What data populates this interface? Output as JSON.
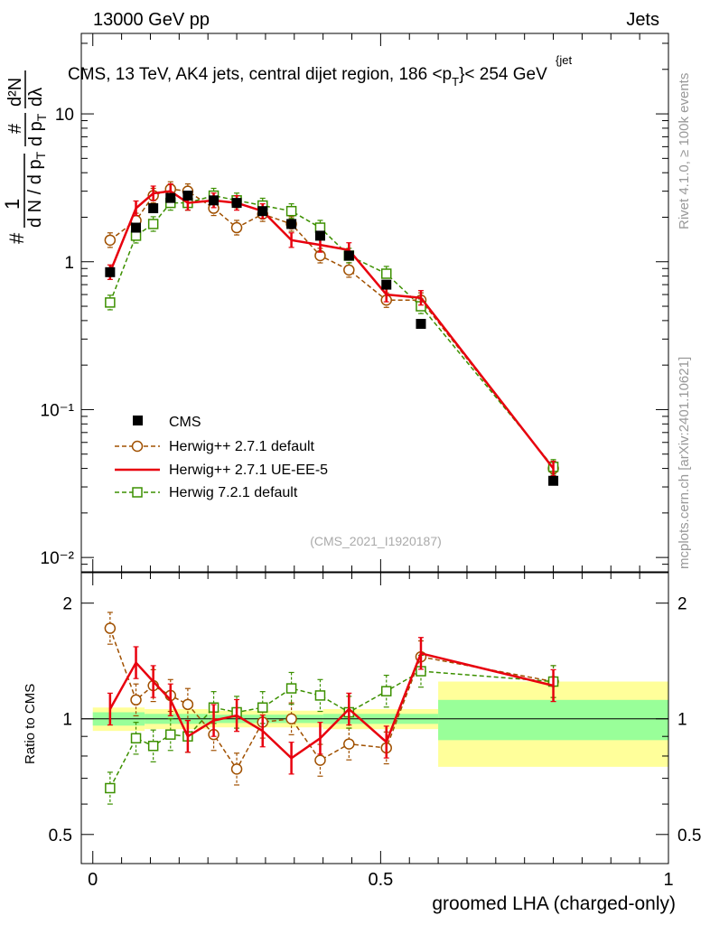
{
  "header": {
    "left_label": "13000 GeV pp",
    "right_label": "Jets",
    "rivet_label": "Rivet 4.1.0, ≥ 100k events",
    "mcplots_label": "mcplots.cern.ch [arXiv:2401.10621]"
  },
  "chart_data": [
    {
      "type": "line",
      "panel": "main",
      "title": "CMS, 13 TeV, AK4 jets, central dijet region, 186 <p",
      "title_sub": "T",
      "title_sup": "{jet",
      "title_tail": "}< 254 GeV",
      "ylabel_parts": {
        "hash": "#",
        "frac_num": "1",
        "frac_den": "d N / d p",
        "frac_den_sub": "T",
        "frac2_num": "#",
        "frac2_den": "d p",
        "frac2_den_sub": "T",
        "d2N": "d²N",
        "dlambda": "dλ"
      },
      "yscale": "log",
      "ylim": [
        0.008,
        35
      ],
      "xlim": [
        -0.02,
        1.0
      ],
      "ytick_labels": [
        "10⁻²",
        "10⁻¹",
        "1",
        "10"
      ],
      "ytick_values": [
        0.01,
        0.1,
        1,
        10
      ],
      "watermark": "(CMS_2021_I1920187)",
      "legend": {
        "placement": "middle-left",
        "entries": [
          {
            "name": "CMS",
            "key": "cms"
          },
          {
            "name": "Herwig++ 2.7.1 default",
            "key": "hd"
          },
          {
            "name": "Herwig++ 2.7.1 UE-EE-5",
            "key": "hue"
          },
          {
            "name": "Herwig 7.2.1 default",
            "key": "h7"
          }
        ]
      },
      "series": [
        {
          "name": "CMS",
          "key": "cms",
          "color": "#000000",
          "x": [
            0.03,
            0.075,
            0.105,
            0.135,
            0.165,
            0.21,
            0.25,
            0.295,
            0.345,
            0.395,
            0.445,
            0.51,
            0.57,
            0.8
          ],
          "y": [
            0.85,
            1.7,
            2.3,
            2.7,
            2.8,
            2.6,
            2.5,
            2.2,
            1.8,
            1.5,
            1.1,
            0.7,
            0.38,
            0.033
          ]
        },
        {
          "name": "Herwig++ 2.7.1 default",
          "key": "hd",
          "color": "#a05000",
          "x": [
            0.03,
            0.075,
            0.105,
            0.135,
            0.165,
            0.21,
            0.25,
            0.295,
            0.345,
            0.395,
            0.445,
            0.51,
            0.57,
            0.8
          ],
          "y": [
            1.4,
            1.9,
            2.8,
            3.1,
            3.0,
            2.3,
            1.7,
            2.1,
            1.8,
            1.1,
            0.88,
            0.55,
            0.55,
            0.04
          ]
        },
        {
          "name": "Herwig++ 2.7.1 UE-EE-5",
          "key": "hue",
          "color": "#e8000e",
          "x": [
            0.03,
            0.075,
            0.105,
            0.135,
            0.165,
            0.21,
            0.25,
            0.295,
            0.345,
            0.395,
            0.445,
            0.51,
            0.57,
            0.8
          ],
          "y": [
            0.85,
            2.3,
            2.9,
            3.0,
            2.5,
            2.6,
            2.5,
            2.2,
            1.4,
            1.3,
            1.2,
            0.6,
            0.57,
            0.04
          ]
        },
        {
          "name": "Herwig 7.2.1 default",
          "key": "h7",
          "color": "#3c9000",
          "x": [
            0.03,
            0.075,
            0.105,
            0.135,
            0.165,
            0.21,
            0.25,
            0.295,
            0.345,
            0.395,
            0.445,
            0.51,
            0.57,
            0.8
          ],
          "y": [
            0.53,
            1.5,
            1.8,
            2.5,
            2.5,
            2.8,
            2.6,
            2.4,
            2.2,
            1.7,
            1.1,
            0.83,
            0.5,
            0.041
          ]
        }
      ]
    },
    {
      "type": "line",
      "panel": "ratio",
      "ylabel": "Ratio to CMS",
      "xlabel": "groomed LHA (charged-only)",
      "ylim": [
        0.42,
        2.4
      ],
      "xlim": [
        -0.02,
        1.0
      ],
      "ytick_labels": [
        "0.5",
        "1",
        "2"
      ],
      "ytick_values": [
        0.5,
        1,
        2
      ],
      "xtick_labels": [
        "0",
        "0.5",
        "1"
      ],
      "xtick_values": [
        0,
        0.5,
        1
      ],
      "bands": {
        "edges": [
          0.0,
          0.09,
          0.2,
          0.4,
          0.6,
          1.0
        ],
        "green_half": [
          0.04,
          0.03,
          0.025,
          0.03,
          0.12
        ],
        "yellow_half": [
          0.07,
          0.06,
          0.05,
          0.06,
          0.25
        ]
      },
      "series": [
        {
          "name": "Herwig++ 2.7.1 default",
          "key": "hd",
          "x": [
            0.03,
            0.075,
            0.105,
            0.135,
            0.165,
            0.21,
            0.25,
            0.295,
            0.345,
            0.395,
            0.445,
            0.51,
            0.57,
            0.8
          ],
          "y": [
            1.72,
            1.12,
            1.22,
            1.15,
            1.09,
            0.91,
            0.74,
            0.98,
            1.0,
            0.78,
            0.86,
            0.84,
            1.45,
            1.25
          ]
        },
        {
          "name": "Herwig++ 2.7.1 UE-EE-5",
          "key": "hue",
          "x": [
            0.03,
            0.075,
            0.105,
            0.135,
            0.165,
            0.21,
            0.25,
            0.295,
            0.345,
            0.395,
            0.445,
            0.51,
            0.57,
            0.8
          ],
          "y": [
            1.06,
            1.4,
            1.25,
            1.12,
            0.9,
            0.99,
            1.02,
            0.93,
            0.79,
            0.89,
            1.06,
            0.87,
            1.48,
            1.22
          ]
        },
        {
          "name": "Herwig 7.2.1 default",
          "key": "h7",
          "x": [
            0.03,
            0.075,
            0.105,
            0.135,
            0.165,
            0.21,
            0.25,
            0.295,
            0.345,
            0.395,
            0.445,
            0.51,
            0.57,
            0.8
          ],
          "y": [
            0.66,
            0.89,
            0.85,
            0.91,
            0.9,
            1.07,
            1.04,
            1.07,
            1.2,
            1.15,
            1.04,
            1.18,
            1.33,
            1.25
          ]
        }
      ]
    }
  ]
}
